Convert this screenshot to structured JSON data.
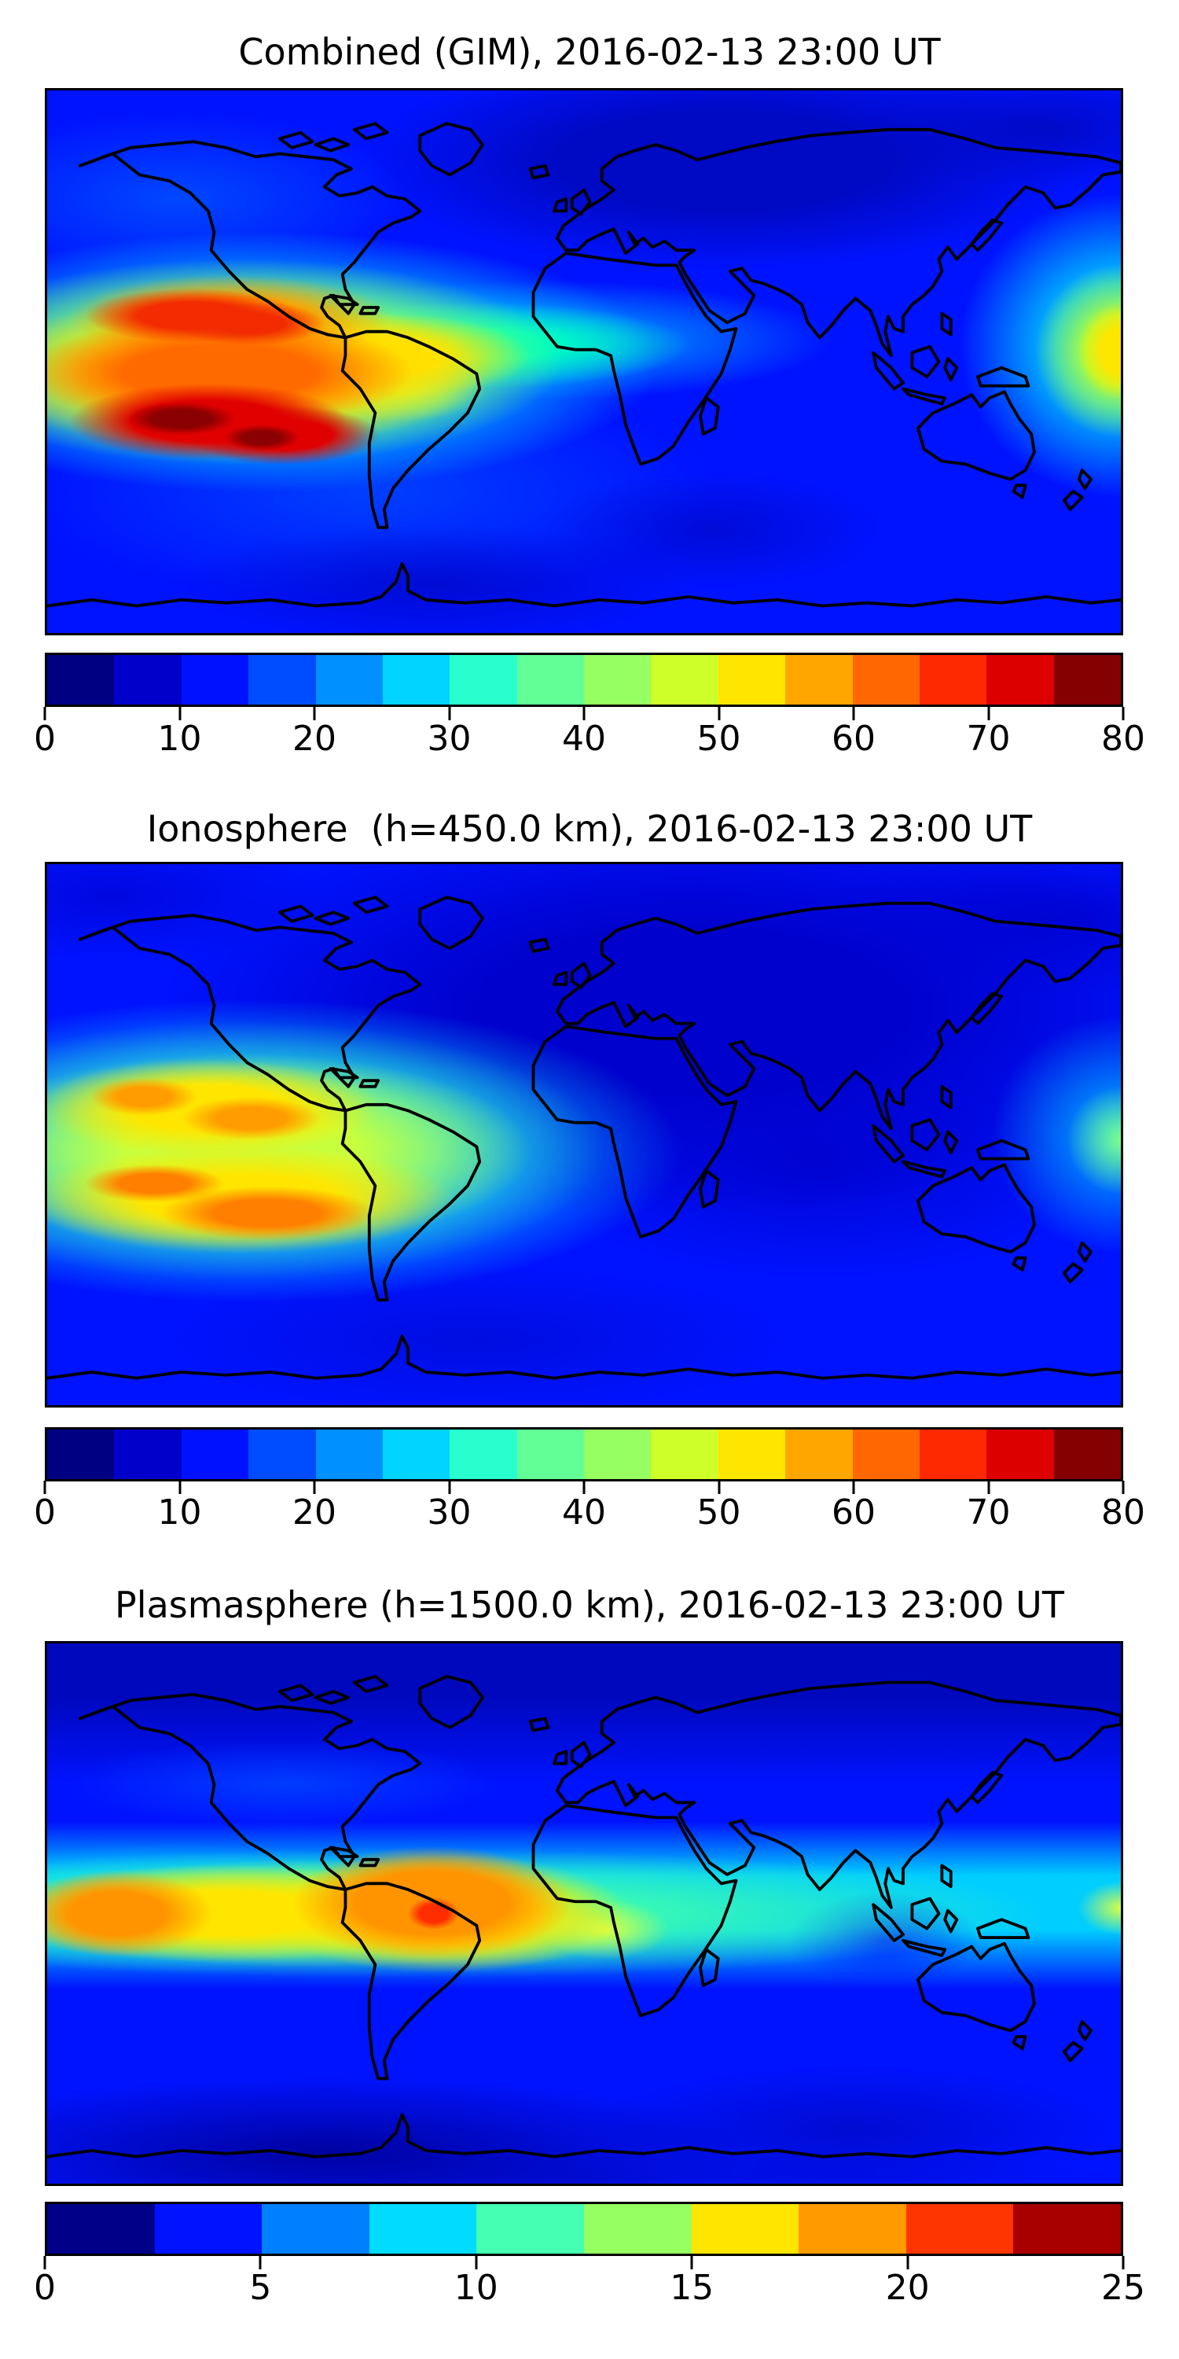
{
  "figure": {
    "background_color": "#FFFFFF",
    "coastline_color": "#000000",
    "colormap_name": "jet (discrete)"
  },
  "panels": [
    {
      "id": "combined",
      "title": "Combined (GIM), 2016-02-13 23:00 UT",
      "colorbar": {
        "min": 0,
        "max": 80,
        "ticks": [
          "0",
          "10",
          "20",
          "30",
          "40",
          "50",
          "60",
          "70",
          "80"
        ],
        "colors": [
          "#000083",
          "#0000CA",
          "#0011FF",
          "#004DFF",
          "#0090FF",
          "#00D4FF",
          "#29FFCE",
          "#61FF96",
          "#96FF61",
          "#CEFF29",
          "#FFE600",
          "#FFA700",
          "#FF6800",
          "#FF2900",
          "#DC0000",
          "#850000"
        ]
      }
    },
    {
      "id": "ionosphere",
      "title": "Ionosphere  (h=450.0 km), 2016-02-13 23:00 UT",
      "colorbar": {
        "min": 0,
        "max": 80,
        "ticks": [
          "0",
          "10",
          "20",
          "30",
          "40",
          "50",
          "60",
          "70",
          "80"
        ],
        "colors": [
          "#000083",
          "#0000CA",
          "#0011FF",
          "#004DFF",
          "#0090FF",
          "#00D4FF",
          "#29FFCE",
          "#61FF96",
          "#96FF61",
          "#CEFF29",
          "#FFE600",
          "#FFA700",
          "#FF6800",
          "#FF2900",
          "#DC0000",
          "#850000"
        ]
      }
    },
    {
      "id": "plasmasphere",
      "title": "Plasmasphere (h=1500.0 km), 2016-02-13 23:00 UT",
      "colorbar": {
        "min": 0,
        "max": 25,
        "ticks": [
          "0",
          "5",
          "10",
          "15",
          "20",
          "25"
        ],
        "colors": [
          "#000089",
          "#0012FF",
          "#0080FF",
          "#00DCFF",
          "#45FFB2",
          "#96FF61",
          "#FFE600",
          "#FF9B00",
          "#FF3500",
          "#A80000"
        ]
      }
    }
  ],
  "chart_data": [
    {
      "type": "heatmap",
      "subtype": "filled-contour world map (TEC)",
      "title": "Combined (GIM), 2016-02-13 23:00 UT",
      "timestamp_label": "2016-02-13 23:00 UT",
      "projection": "equirectangular",
      "lon_range": [
        -180,
        180
      ],
      "lat_range": [
        -90,
        90
      ],
      "colormap": "jet, 16 discrete levels",
      "value_range": [
        0,
        80
      ],
      "contour_interval": 5,
      "colorbar_ticks": [
        0,
        10,
        20,
        30,
        40,
        50,
        60,
        70,
        80
      ],
      "coastlines": true,
      "features": [
        {
          "name": "southern anomaly crest peak, SE Pacific",
          "lon": -149,
          "lat": -18,
          "value": 78
        },
        {
          "name": "southern crest secondary core",
          "lon": -113,
          "lat": -25,
          "value": 77
        },
        {
          "name": "northern anomaly crest, E Pacific",
          "lon": -126,
          "lat": 8,
          "value": 72
        },
        {
          "name": "plume over NW South America",
          "lon": -75,
          "lat": 0,
          "value": 55
        },
        {
          "name": "western Pacific edge enhancement",
          "lon": 179,
          "lat": -6,
          "value": 47
        },
        {
          "name": "Atlantic equatorial tongue",
          "lon": -20,
          "lat": -8,
          "value": 30
        },
        {
          "name": "minimum over central / north Asia",
          "lon": 45,
          "lat": 58,
          "value": 4
        },
        {
          "name": "south polar background",
          "lon": 0,
          "lat": -75,
          "value": 8
        }
      ]
    },
    {
      "type": "heatmap",
      "subtype": "filled-contour world map (TEC)",
      "title": "Ionosphere  (h=450.0 km), 2016-02-13 23:00 UT",
      "timestamp_label": "2016-02-13 23:00 UT",
      "shell_height_km": 450.0,
      "projection": "equirectangular",
      "lon_range": [
        -180,
        180
      ],
      "lat_range": [
        -90,
        90
      ],
      "colormap": "jet, 16 discrete levels",
      "value_range": [
        0,
        80
      ],
      "contour_interval": 5,
      "colorbar_ticks": [
        0,
        10,
        20,
        30,
        40,
        50,
        60,
        70,
        80
      ],
      "coastlines": true,
      "features": [
        {
          "name": "southern crest core, SE Pacific",
          "lon": -122,
          "lat": -26,
          "value": 65
        },
        {
          "name": "southern crest core 2",
          "lon": -152,
          "lat": -23,
          "value": 63
        },
        {
          "name": "northern crest blob",
          "lon": -143,
          "lat": 12,
          "value": 58
        },
        {
          "name": "northern crest blob 2",
          "lon": -117,
          "lat": 5,
          "value": 60
        },
        {
          "name": "deep minimum over Africa / Eurasia",
          "lon": 25,
          "lat": 25,
          "value": 2
        },
        {
          "name": "western Pacific edge enhancement",
          "lon": 176,
          "lat": -8,
          "value": 33
        },
        {
          "name": "south Atlantic background",
          "lon": -25,
          "lat": -20,
          "value": 15
        }
      ]
    },
    {
      "type": "heatmap",
      "subtype": "filled-contour world map (TEC)",
      "title": "Plasmasphere (h=1500.0 km), 2016-02-13 23:00 UT",
      "timestamp_label": "2016-02-13 23:00 UT",
      "shell_height_km": 1500.0,
      "projection": "equirectangular",
      "lon_range": [
        -180,
        180
      ],
      "lat_range": [
        -90,
        90
      ],
      "colormap": "jet, 10 discrete levels",
      "value_range": [
        0,
        25
      ],
      "contour_interval": 2.5,
      "colorbar_ticks": [
        0,
        5,
        10,
        15,
        20,
        25
      ],
      "coastlines": true,
      "features": [
        {
          "name": "peak over NE Brazil (small red core)",
          "lon": -46,
          "lat": -4,
          "value": 24
        },
        {
          "name": "central Pacific peak",
          "lon": -157,
          "lat": -2,
          "value": 21
        },
        {
          "name": "equatorial belt typical value",
          "lon": -100,
          "lat": 0,
          "value": 14
        },
        {
          "name": "Africa / Indian Ocean patch",
          "lon": 8,
          "lat": -5,
          "value": 14
        },
        {
          "name": "western Pacific edge patch",
          "lon": 178,
          "lat": -2,
          "value": 16
        },
        {
          "name": "Indonesia gap in belt",
          "lon": 100,
          "lat": 0,
          "value": 9
        },
        {
          "name": "northern high-latitude background",
          "lon": 0,
          "lat": 60,
          "value": 3
        },
        {
          "name": "polar minimum",
          "lon": -120,
          "lat": -60,
          "value": 1
        }
      ]
    }
  ]
}
